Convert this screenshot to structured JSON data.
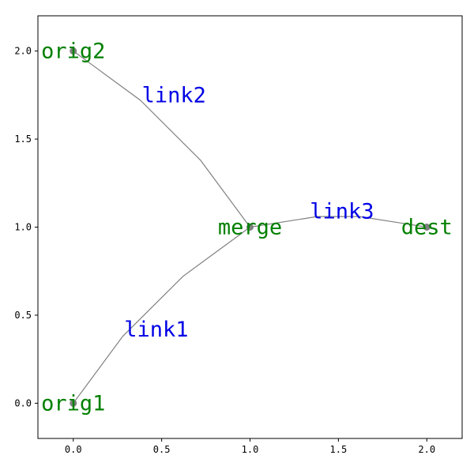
{
  "chart_data": {
    "type": "network",
    "xlim": [
      -0.2,
      2.2
    ],
    "ylim": [
      -0.2,
      2.2
    ],
    "x_ticks": [
      "0.0",
      "0.5",
      "1.0",
      "1.5",
      "2.0"
    ],
    "y_ticks": [
      "0.0",
      "0.5",
      "1.0",
      "1.5",
      "2.0"
    ],
    "grid": false,
    "nodes": [
      {
        "id": "orig1",
        "label": "orig1",
        "x": 0.0,
        "y": 0.0
      },
      {
        "id": "orig2",
        "label": "orig2",
        "x": 0.0,
        "y": 2.0
      },
      {
        "id": "merge",
        "label": "merge",
        "x": 1.0,
        "y": 1.0
      },
      {
        "id": "dest",
        "label": "dest",
        "x": 2.0,
        "y": 1.0
      }
    ],
    "links": [
      {
        "label": "link1",
        "from": "orig1",
        "to": "merge",
        "path": [
          [
            0.0,
            0.0
          ],
          [
            0.28,
            0.38
          ],
          [
            0.62,
            0.72
          ],
          [
            1.0,
            1.0
          ]
        ],
        "label_at": [
          0.47,
          0.42
        ]
      },
      {
        "label": "link2",
        "from": "orig2",
        "to": "merge",
        "path": [
          [
            0.0,
            2.0
          ],
          [
            0.38,
            1.72
          ],
          [
            0.72,
            1.38
          ],
          [
            1.0,
            1.0
          ]
        ],
        "label_at": [
          0.57,
          1.75
        ]
      },
      {
        "label": "link3",
        "from": "merge",
        "to": "dest",
        "path": [
          [
            1.0,
            1.0
          ],
          [
            1.38,
            1.06
          ],
          [
            1.62,
            1.06
          ],
          [
            2.0,
            1.0
          ]
        ],
        "label_at": [
          1.52,
          1.09
        ]
      }
    ],
    "colors": {
      "node": "#808080",
      "edge": "#808080",
      "node_label": "#008000",
      "link_label": "#0000e6",
      "axes": "#000000"
    }
  }
}
